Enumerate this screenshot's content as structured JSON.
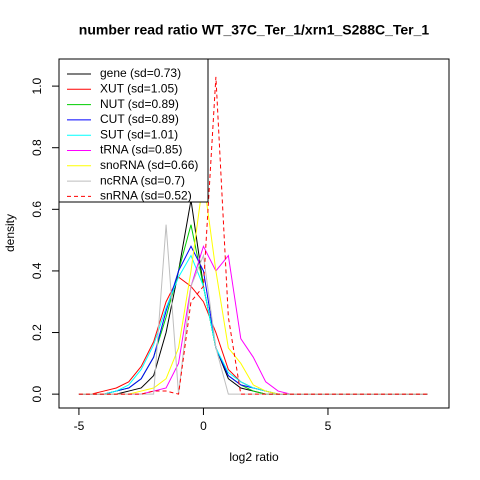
{
  "chart_data": {
    "type": "line",
    "title": "number read ratio WT_37C_Ter_1/xrn1_S288C_Ter_1",
    "xlabel": "log2 ratio",
    "ylabel": "density",
    "x": [
      -5,
      -4.5,
      -4,
      -3.5,
      -3,
      -2.5,
      -2,
      -1.5,
      -1,
      -0.5,
      0,
      0.5,
      1,
      1.5,
      2,
      2.5,
      3,
      3.5,
      4,
      4.5,
      5,
      5.5,
      6,
      6.5,
      7,
      7.5,
      8,
      8.5,
      9
    ],
    "series": [
      {
        "name": "gene (sd=0.73)",
        "color": "#000000",
        "linestyle": "solid",
        "values": [
          0,
          0,
          0,
          0,
          0.01,
          0.02,
          0.06,
          0.2,
          0.4,
          0.63,
          0.35,
          0.15,
          0.05,
          0.02,
          0.01,
          0,
          0,
          0,
          0,
          0,
          0,
          0,
          0,
          0,
          0,
          0,
          0,
          0,
          0
        ]
      },
      {
        "name": "XUT (sd=1.05)",
        "color": "#ff0000",
        "linestyle": "solid",
        "values": [
          0,
          0,
          0.01,
          0.02,
          0.04,
          0.09,
          0.17,
          0.3,
          0.38,
          0.35,
          0.3,
          0.2,
          0.08,
          0.04,
          0.02,
          0.01,
          0,
          0,
          0,
          0,
          0,
          0,
          0,
          0,
          0,
          0,
          0,
          0,
          0
        ]
      },
      {
        "name": "NUT (sd=0.89)",
        "color": "#00cd00",
        "linestyle": "solid",
        "values": [
          0,
          0,
          0,
          0.01,
          0.02,
          0.05,
          0.12,
          0.25,
          0.4,
          0.55,
          0.35,
          0.15,
          0.06,
          0.03,
          0.01,
          0,
          0,
          0,
          0,
          0,
          0,
          0,
          0,
          0,
          0,
          0,
          0,
          0,
          0
        ]
      },
      {
        "name": "CUT (sd=0.89)",
        "color": "#0000ff",
        "linestyle": "solid",
        "values": [
          0,
          0,
          0,
          0.01,
          0.02,
          0.05,
          0.12,
          0.27,
          0.4,
          0.48,
          0.4,
          0.15,
          0.06,
          0.03,
          0.02,
          0.01,
          0,
          0,
          0,
          0,
          0,
          0,
          0,
          0,
          0,
          0,
          0,
          0,
          0
        ]
      },
      {
        "name": "SUT (sd=1.01)",
        "color": "#00ffff",
        "linestyle": "solid",
        "values": [
          0,
          0,
          0,
          0.01,
          0.03,
          0.08,
          0.16,
          0.28,
          0.38,
          0.45,
          0.35,
          0.15,
          0.07,
          0.04,
          0.02,
          0.01,
          0,
          0,
          0,
          0,
          0,
          0,
          0,
          0,
          0,
          0,
          0,
          0,
          0
        ]
      },
      {
        "name": "tRNA (sd=0.85)",
        "color": "#ff00ff",
        "linestyle": "solid",
        "values": [
          0,
          0,
          0,
          0,
          0,
          0,
          0.01,
          0.02,
          0.1,
          0.35,
          0.48,
          0.4,
          0.45,
          0.18,
          0.12,
          0.04,
          0.01,
          0,
          0,
          0,
          0,
          0,
          0,
          0,
          0,
          0,
          0,
          0,
          0
        ]
      },
      {
        "name": "snoRNA (sd=0.66)",
        "color": "#ffff00",
        "linestyle": "solid",
        "values": [
          0,
          0,
          0,
          0,
          0,
          0.01,
          0.02,
          0.05,
          0.15,
          0.4,
          0.7,
          0.4,
          0.15,
          0.1,
          0.03,
          0.01,
          0,
          0,
          0,
          0,
          0,
          0,
          0,
          0,
          0,
          0,
          0,
          0,
          0
        ]
      },
      {
        "name": "ncRNA (sd=0.7)",
        "color": "#bebebe",
        "linestyle": "solid",
        "values": [
          0,
          0,
          0,
          0,
          0,
          0,
          0,
          0.55,
          0,
          0.35,
          0.45,
          0.15,
          0,
          0,
          0,
          0,
          0,
          0,
          0,
          0,
          0,
          0,
          0,
          0,
          0,
          0,
          0,
          0,
          0
        ]
      },
      {
        "name": "snRNA (sd=0.52)",
        "color": "#ff0000",
        "linestyle": "dashed",
        "values": [
          0,
          0,
          0,
          0,
          0,
          0,
          0.01,
          0.01,
          0,
          0.3,
          0.35,
          1.03,
          0.25,
          0,
          0,
          0,
          0,
          0,
          0,
          0,
          0,
          0,
          0,
          0,
          0,
          0,
          0,
          0,
          0
        ]
      }
    ],
    "xlim": [
      -5.8,
      9.86
    ],
    "ylim": [
      -0.045,
      1.088
    ],
    "xticks": [
      -5,
      0,
      5
    ],
    "yticks": [
      {
        "value": 0,
        "label": "0.0"
      },
      {
        "value": 0.2,
        "label": "0.2"
      },
      {
        "value": 0.4,
        "label": "0.4"
      },
      {
        "value": 0.6,
        "label": "0.6"
      },
      {
        "value": 0.8,
        "label": "0.8"
      },
      {
        "value": 1.0,
        "label": "1.0"
      }
    ],
    "legend": "top-left"
  }
}
